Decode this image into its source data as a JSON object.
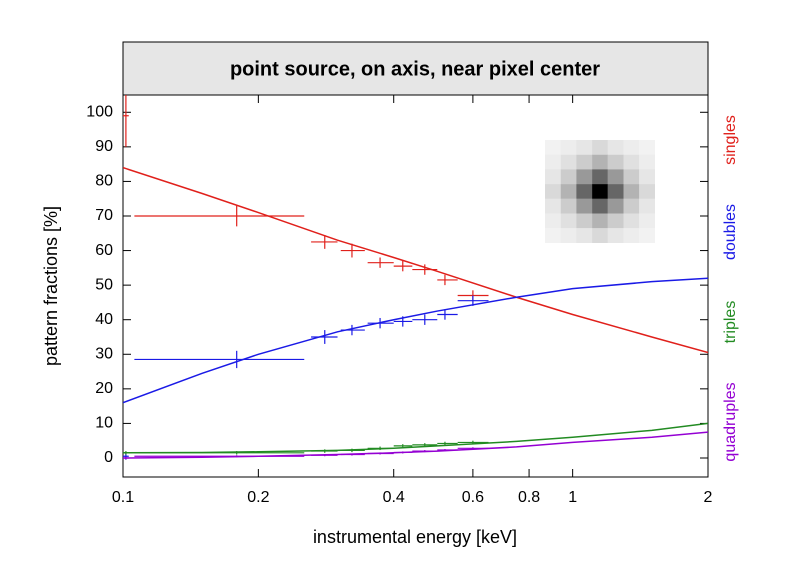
{
  "chart_data": {
    "type": "errorbar",
    "title": "point source, on axis, near pixel center",
    "x_label": "instrumental energy  [keV]",
    "y_label": "pattern fractions [%]",
    "x_scale": "log",
    "xlim": [
      0.1,
      2
    ],
    "ylim": [
      -5.5,
      105
    ],
    "xticks": [
      0.1,
      0.2,
      0.4,
      0.6,
      0.8,
      1,
      2
    ],
    "yticks": [
      0,
      10,
      20,
      30,
      40,
      50,
      60,
      70,
      80,
      90,
      100
    ],
    "grid": false,
    "legend_position": "right",
    "x": [
      0.1015,
      0.179,
      0.281,
      0.323,
      0.373,
      0.419,
      0.469,
      0.52,
      0.6
    ],
    "x_low": [
      0.1,
      0.106,
      0.262,
      0.305,
      0.35,
      0.4,
      0.44,
      0.5,
      0.555
    ],
    "x_high": [
      0.103,
      0.253,
      0.3,
      0.345,
      0.4,
      0.44,
      0.5,
      0.555,
      0.65
    ],
    "model_x": [
      0.1,
      0.15,
      0.2,
      0.3,
      0.4,
      0.5,
      0.75,
      1,
      1.5,
      2
    ],
    "series": [
      {
        "name": "singles",
        "color": "#e0201b",
        "values": [
          99,
          70,
          62.5,
          60,
          56.5,
          55.5,
          54.5,
          51.5,
          47
        ],
        "y_err": [
          9,
          3,
          2,
          2,
          1.5,
          1.5,
          1.5,
          1.5,
          1.5
        ],
        "model": [
          84,
          76.5,
          71,
          63,
          58,
          54,
          46.5,
          41.5,
          35,
          30.5
        ]
      },
      {
        "name": "doubles",
        "color": "#1a1ae6",
        "values": [
          0.5,
          28.5,
          35,
          37,
          39,
          39.5,
          40,
          41.5,
          45.5
        ],
        "y_err": [
          1,
          2.5,
          2,
          1.5,
          1.5,
          1.5,
          1.5,
          1.5,
          1.5
        ],
        "model": [
          16,
          24.5,
          30,
          36.5,
          40,
          42.5,
          46.5,
          49,
          51,
          52
        ]
      },
      {
        "name": "triples",
        "color": "#228b22",
        "values": [
          1.5,
          1.5,
          2,
          2.2,
          2.8,
          3.5,
          3.8,
          4.2,
          4.5
        ],
        "y_err": [
          0.5,
          0.5,
          0.5,
          0.5,
          0.5,
          0.5,
          0.5,
          0.5,
          0.5
        ],
        "model": [
          1.5,
          1.6,
          1.8,
          2.2,
          2.8,
          3.5,
          4.8,
          6,
          8,
          10
        ]
      },
      {
        "name": "quadruples",
        "color": "#9400d3",
        "values": [
          0,
          0.5,
          0.8,
          1,
          1.3,
          1.6,
          2,
          2.3,
          2.8
        ],
        "y_err": [
          0.3,
          0.3,
          0.3,
          0.3,
          0.3,
          0.3,
          0.3,
          0.3,
          0.3
        ],
        "model": [
          0,
          0.2,
          0.5,
          1,
          1.5,
          2,
          3.2,
          4.5,
          6,
          7.5
        ]
      }
    ]
  }
}
